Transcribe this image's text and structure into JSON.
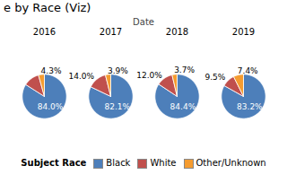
{
  "chart_data": {
    "type": "pie",
    "title": "e by Race (Viz)",
    "xlabel": "Date",
    "categories": [
      "2016",
      "2017",
      "2018",
      "2019"
    ],
    "series": [
      {
        "name": "Black",
        "color": "#4d7fba",
        "values": [
          84.0,
          82.1,
          84.4,
          83.2
        ],
        "value_labels": [
          "84.0%",
          "82.1%",
          "84.4%",
          "83.2%"
        ]
      },
      {
        "name": "White",
        "color": "#c0504d",
        "values": [
          11.7,
          14.0,
          12.0,
          9.5
        ],
        "value_labels": [
          null,
          "14.0%",
          "12.0%",
          "9.5%"
        ]
      },
      {
        "name": "Other/Unknown",
        "color": "#f59c30",
        "values": [
          4.3,
          3.9,
          3.7,
          7.4
        ],
        "value_labels": [
          "4.3%",
          "3.9%",
          "3.7%",
          "7.4%"
        ]
      }
    ],
    "data_labels": true,
    "legend": "bottom",
    "legend_title": "Subject Race"
  }
}
